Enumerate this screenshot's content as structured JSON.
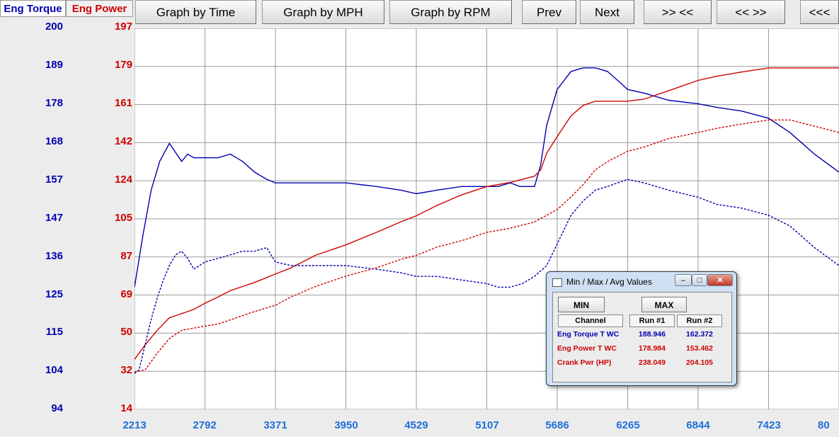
{
  "header": {
    "tab_torque": "Eng Torque",
    "tab_power": "Eng Power",
    "buttons": [
      "Graph by Time",
      "Graph by MPH",
      "Graph by RPM",
      "Prev",
      "Next",
      ">> <<",
      "<< >>",
      "<<<"
    ]
  },
  "colors": {
    "torque": "#0000b0",
    "power": "#d00000",
    "xaxis": "#1e6fd9",
    "grid": "#9a9a9a"
  },
  "chart_data": {
    "type": "line",
    "xlabel": "",
    "x_ticks": [
      "2213",
      "2792",
      "3371",
      "3950",
      "4529",
      "5107",
      "5686",
      "6265",
      "6844",
      "7423",
      "80"
    ],
    "xlim": [
      2213,
      8002
    ],
    "y_left_ticks": [
      "200",
      "189",
      "178",
      "168",
      "157",
      "147",
      "136",
      "125",
      "115",
      "104",
      "94"
    ],
    "y_left_lim": [
      94,
      200
    ],
    "y_right_ticks": [
      "197",
      "179",
      "161",
      "142",
      "124",
      "105",
      "87",
      "69",
      "50",
      "32",
      "14"
    ],
    "y_right_lim": [
      14,
      197
    ],
    "grid": true,
    "series": [
      {
        "axis": "left",
        "style": "solid",
        "color": "#0000b0",
        "x": [
          2213,
          2280,
          2350,
          2420,
          2500,
          2540,
          2600,
          2650,
          2700,
          2800,
          2900,
          3000,
          3050,
          3100,
          3200,
          3300,
          3371,
          3500,
          3700,
          3950,
          4200,
          4400,
          4529,
          4700,
          4900,
          5107,
          5200,
          5300,
          5380,
          5450,
          5500,
          5550,
          5600,
          5686,
          5800,
          5900,
          6000,
          6100,
          6200,
          6265,
          6400,
          6600,
          6844,
          7000,
          7200,
          7423,
          7600,
          7800,
          8002
        ],
        "y": [
          128,
          142,
          155,
          163,
          168,
          166,
          163,
          165,
          164,
          164,
          164,
          165,
          164,
          163,
          160,
          158,
          157,
          157,
          157,
          157,
          156,
          155,
          154,
          155,
          156,
          156,
          156,
          157,
          156,
          156,
          156,
          162,
          173,
          183,
          188,
          189,
          189,
          188,
          185,
          183,
          182,
          180,
          179,
          178,
          177,
          175,
          171,
          165,
          160
        ]
      },
      {
        "axis": "right",
        "style": "solid",
        "color": "#d00000",
        "x": [
          2213,
          2300,
          2400,
          2500,
          2600,
          2700,
          2792,
          2900,
          3000,
          3100,
          3200,
          3371,
          3500,
          3700,
          3950,
          4200,
          4400,
          4529,
          4700,
          4900,
          5107,
          5300,
          5500,
          5550,
          5600,
          5686,
          5800,
          5900,
          6000,
          6100,
          6265,
          6400,
          6600,
          6844,
          7000,
          7200,
          7423,
          7600,
          7800,
          8002
        ],
        "y": [
          38,
          45,
          52,
          58,
          60,
          62,
          65,
          68,
          71,
          73,
          75,
          79,
          82,
          88,
          93,
          99,
          104,
          107,
          112,
          117,
          121,
          123,
          126,
          129,
          137,
          145,
          155,
          160,
          162,
          162,
          162,
          163,
          167,
          172,
          174,
          176,
          178,
          178,
          178,
          178
        ]
      },
      {
        "axis": "left",
        "style": "dashed",
        "color": "#0000b0",
        "x": [
          2213,
          2250,
          2300,
          2350,
          2400,
          2450,
          2500,
          2550,
          2600,
          2650,
          2700,
          2792,
          2900,
          3000,
          3100,
          3200,
          3300,
          3371,
          3500,
          3700,
          3950,
          4200,
          4400,
          4529,
          4700,
          4900,
          5107,
          5200,
          5300,
          5400,
          5500,
          5600,
          5700,
          5800,
          5900,
          6000,
          6100,
          6265,
          6400,
          6600,
          6844,
          7000,
          7200,
          7423,
          7600,
          7800,
          8002
        ],
        "y": [
          104,
          105,
          112,
          119,
          125,
          130,
          134,
          137,
          138,
          136,
          133,
          135,
          136,
          137,
          138,
          138,
          139,
          135,
          134,
          134,
          134,
          133,
          132,
          131,
          131,
          130,
          129,
          128,
          128,
          129,
          131,
          134,
          141,
          148,
          152,
          155,
          156,
          158,
          157,
          155,
          153,
          151,
          150,
          148,
          145,
          139,
          134
        ]
      },
      {
        "axis": "right",
        "style": "dashed",
        "color": "#d00000",
        "x": [
          2213,
          2300,
          2400,
          2500,
          2600,
          2700,
          2792,
          2900,
          3000,
          3100,
          3200,
          3371,
          3500,
          3700,
          3950,
          4200,
          4400,
          4529,
          4700,
          4900,
          5107,
          5300,
          5500,
          5686,
          5800,
          5900,
          6000,
          6100,
          6265,
          6400,
          6600,
          6844,
          7000,
          7200,
          7423,
          7600,
          7800,
          8002
        ],
        "y": [
          32,
          33,
          41,
          48,
          52,
          53,
          54,
          55,
          57,
          59,
          61,
          64,
          68,
          73,
          78,
          82,
          86,
          88,
          92,
          95,
          99,
          101,
          104,
          110,
          116,
          122,
          129,
          133,
          138,
          140,
          144,
          147,
          149,
          151,
          153,
          153,
          150,
          147
        ]
      }
    ]
  },
  "popup": {
    "title": "Min / Max / Avg Values",
    "min_label": "MIN",
    "max_label": "MAX",
    "headers": [
      "Channel",
      "Run #1",
      "Run #2"
    ],
    "rows": [
      {
        "channel": "Eng Torque T WC",
        "run1": "188.946",
        "run2": "162.372"
      },
      {
        "channel": "Eng Power T WC",
        "run1": "178.984",
        "run2": "153.462"
      },
      {
        "channel": "Crank Pwr (HP)",
        "run1": "238.049",
        "run2": "204.105"
      }
    ]
  }
}
